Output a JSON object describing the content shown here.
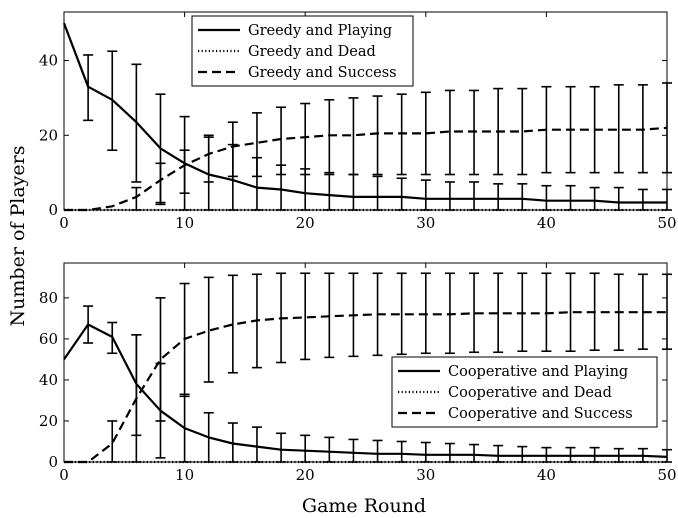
{
  "chart_data": [
    {
      "type": "line",
      "ylabel": "Number of Players",
      "xlabel": "",
      "xlim": [
        0,
        50
      ],
      "ylim": [
        0,
        53
      ],
      "xticks": [
        0,
        10,
        20,
        30,
        40,
        50
      ],
      "yticks": [
        0,
        20,
        40
      ],
      "legend_position": "top-center",
      "x": [
        0,
        2,
        4,
        6,
        8,
        10,
        12,
        14,
        16,
        18,
        20,
        22,
        24,
        26,
        28,
        30,
        32,
        34,
        36,
        38,
        40,
        42,
        44,
        46,
        48,
        50
      ],
      "series": [
        {
          "name": "Greedy and Playing",
          "style": "solid",
          "values": [
            50,
            33,
            29.5,
            23.5,
            16.5,
            12.5,
            9.5,
            8,
            6,
            5.5,
            4.5,
            4,
            3.5,
            3.5,
            3.5,
            3,
            3,
            3,
            3,
            3,
            2.5,
            2.5,
            2.5,
            2,
            2,
            2
          ],
          "err_low": [
            null,
            24,
            16,
            7.5,
            2,
            0,
            0,
            0,
            0,
            0,
            0,
            0,
            0,
            0,
            0,
            0,
            0,
            0,
            0,
            0,
            0,
            0,
            0,
            0,
            0,
            0
          ],
          "err_high": [
            null,
            41.5,
            42.5,
            39,
            31,
            25,
            20,
            17.5,
            14,
            12,
            11,
            10,
            9.5,
            9,
            8.5,
            8,
            7.5,
            7.5,
            7,
            7,
            6.5,
            6.5,
            6,
            6,
            5.5,
            5.5
          ]
        },
        {
          "name": "Greedy and Dead",
          "style": "dotted",
          "values": [
            0,
            0,
            0,
            0,
            0,
            0,
            0,
            0,
            0,
            0,
            0,
            0,
            0,
            0,
            0,
            0,
            0,
            0,
            0,
            0,
            0,
            0,
            0,
            0,
            0,
            0
          ]
        },
        {
          "name": "Greedy and Success",
          "style": "dashed",
          "values": [
            0,
            0,
            1,
            3.5,
            8,
            12,
            15,
            17,
            18,
            19,
            19.5,
            20,
            20,
            20.5,
            20.5,
            20.5,
            21,
            21,
            21,
            21,
            21.5,
            21.5,
            21.5,
            21.5,
            21.5,
            22
          ],
          "err_low": [
            null,
            null,
            null,
            0,
            1.5,
            4.5,
            7.5,
            9,
            9,
            9.5,
            9.5,
            9.5,
            9.5,
            9.5,
            9.5,
            9.5,
            9.5,
            9.5,
            9.5,
            9.5,
            10,
            10,
            10,
            10,
            10,
            10
          ],
          "err_high": [
            null,
            null,
            null,
            6,
            12.5,
            16,
            19.5,
            23.5,
            26,
            27.5,
            28.5,
            29.5,
            30,
            30.5,
            31,
            31.5,
            32,
            32,
            32.5,
            32.5,
            33,
            33,
            33,
            33.5,
            33.5,
            34
          ]
        }
      ]
    },
    {
      "type": "line",
      "ylabel": "",
      "xlabel": "Game Round",
      "xlim": [
        0,
        50
      ],
      "ylim": [
        0,
        97
      ],
      "xticks": [
        0,
        10,
        20,
        30,
        40,
        50
      ],
      "yticks": [
        0,
        20,
        40,
        60,
        80
      ],
      "legend_position": "bottom-right",
      "x": [
        0,
        2,
        4,
        6,
        8,
        10,
        12,
        14,
        16,
        18,
        20,
        22,
        24,
        26,
        28,
        30,
        32,
        34,
        36,
        38,
        40,
        42,
        44,
        46,
        48,
        50
      ],
      "series": [
        {
          "name": "Cooperative and Playing",
          "style": "solid",
          "values": [
            50,
            67,
            61,
            38,
            25,
            16.5,
            12,
            9,
            7.5,
            6,
            5.5,
            5,
            4.5,
            4,
            4,
            3.5,
            3.5,
            3.5,
            3,
            3,
            3,
            3,
            3,
            3,
            3,
            2.5
          ],
          "err_low": [
            null,
            58,
            53,
            13,
            2,
            0,
            0,
            0,
            0,
            0,
            0,
            0,
            0,
            0,
            0,
            0,
            0,
            0,
            0,
            0,
            0,
            0,
            0,
            0,
            0,
            0
          ],
          "err_high": [
            null,
            76,
            68,
            62,
            48,
            33,
            24,
            19,
            17,
            14,
            13,
            12,
            11,
            10.5,
            10,
            9.5,
            9,
            8.5,
            8,
            7.5,
            7,
            7,
            7,
            6.5,
            6.5,
            6
          ]
        },
        {
          "name": "Cooperative and Dead",
          "style": "dotted",
          "values": [
            0,
            0,
            0,
            0,
            0,
            0,
            0,
            0,
            0,
            0,
            0,
            0,
            0,
            0,
            0,
            0,
            0,
            0,
            0,
            0,
            0,
            0,
            0,
            0,
            0,
            0
          ]
        },
        {
          "name": "Cooperative and Success",
          "style": "dashed",
          "values": [
            0,
            0,
            9,
            31,
            50,
            60,
            64,
            67,
            69,
            70,
            70.5,
            71,
            71.5,
            72,
            72,
            72,
            72,
            72.5,
            72.5,
            72.5,
            72.5,
            73,
            73,
            73,
            73,
            73
          ],
          "err_low": [
            null,
            null,
            0,
            0,
            20,
            32,
            39,
            43.5,
            46,
            48.5,
            50,
            51,
            51.5,
            52,
            52.5,
            53,
            53,
            53.5,
            53.5,
            54,
            54,
            54,
            54.5,
            54.5,
            55,
            55
          ],
          "err_high": [
            null,
            null,
            20,
            62,
            80,
            87,
            90,
            91,
            91.5,
            92,
            92,
            92,
            92,
            92,
            92,
            92,
            92,
            92,
            92,
            92,
            92,
            92,
            92,
            91.5,
            91.5,
            91.5
          ]
        }
      ]
    }
  ]
}
